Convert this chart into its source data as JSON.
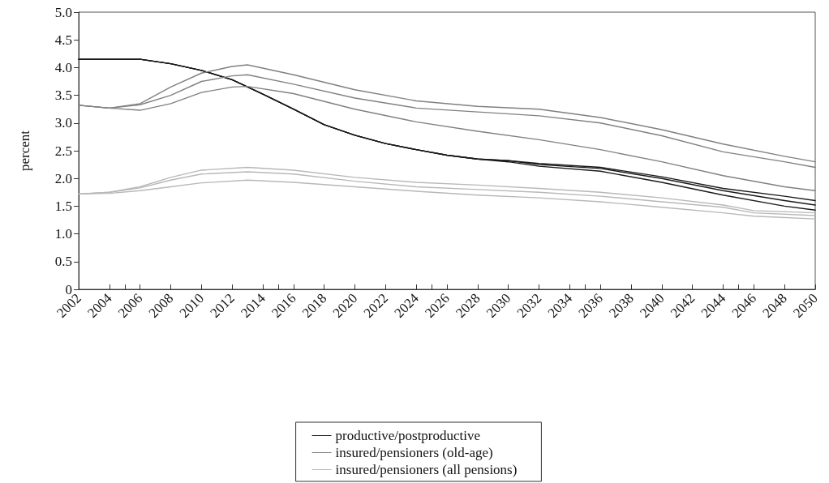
{
  "chart_data": {
    "type": "line",
    "ylabel": "percent",
    "xlim": [
      2002,
      2050
    ],
    "xticks": [
      2002,
      2004,
      2006,
      2008,
      2010,
      2012,
      2014,
      2016,
      2018,
      2020,
      2022,
      2024,
      2026,
      2028,
      2030,
      2032,
      2034,
      2036,
      2038,
      2040,
      2042,
      2044,
      2046,
      2048,
      2050
    ],
    "ylim": [
      0,
      5
    ],
    "yticks": [
      0,
      {
        "value": 0.5,
        "label": "0.5"
      },
      {
        "value": 1,
        "label": "1.0"
      },
      {
        "value": 1.5,
        "label": "1.5"
      },
      {
        "value": 2,
        "label": "2.0"
      },
      {
        "value": 2.5,
        "label": "2.5"
      },
      {
        "value": 3,
        "label": "3.0"
      },
      {
        "value": 3.5,
        "label": "3.5"
      },
      {
        "value": 4,
        "label": "4.0"
      },
      {
        "value": 4.5,
        "label": "4.5"
      },
      {
        "value": 5,
        "label": "5.0"
      }
    ],
    "grid": false,
    "legend": "bottom",
    "marker": "none",
    "line_style": "solid",
    "series": [
      {
        "name": "productive/postproductive",
        "color": "#1a1a1a",
        "x": [
          2002,
          2004,
          2006,
          2008,
          2010,
          2012,
          2014,
          2016,
          2018,
          2020,
          2022,
          2024,
          2026,
          2028,
          2030,
          2032,
          2036,
          2040,
          2044,
          2048,
          2050
        ],
        "values": [
          4.15,
          4.15,
          4.15,
          4.07,
          3.95,
          3.78,
          3.52,
          3.25,
          2.97,
          2.78,
          2.63,
          2.52,
          2.42,
          2.35,
          2.32,
          2.27,
          2.2,
          2.03,
          1.82,
          1.68,
          1.6
        ]
      },
      {
        "color": "#1a1a1a",
        "x": [
          2002,
          2004,
          2006,
          2008,
          2010,
          2012,
          2014,
          2016,
          2018,
          2020,
          2022,
          2024,
          2026,
          2028,
          2030,
          2032,
          2036,
          2040,
          2044,
          2048,
          2050
        ],
        "values": [
          4.15,
          4.15,
          4.15,
          4.07,
          3.95,
          3.78,
          3.52,
          3.25,
          2.97,
          2.78,
          2.63,
          2.52,
          2.42,
          2.35,
          2.32,
          2.25,
          2.18,
          2.0,
          1.78,
          1.6,
          1.52
        ]
      },
      {
        "color": "#1a1a1a",
        "x": [
          2002,
          2004,
          2006,
          2008,
          2010,
          2012,
          2014,
          2016,
          2018,
          2020,
          2022,
          2024,
          2026,
          2028,
          2030,
          2032,
          2036,
          2040,
          2044,
          2048,
          2050
        ],
        "values": [
          4.15,
          4.15,
          4.15,
          4.07,
          3.95,
          3.78,
          3.52,
          3.25,
          2.97,
          2.78,
          2.63,
          2.52,
          2.42,
          2.35,
          2.3,
          2.22,
          2.13,
          1.93,
          1.7,
          1.5,
          1.43
        ]
      },
      {
        "name": "insured/pensioners (old-age)",
        "color": "#808080",
        "x": [
          2002,
          2004,
          2006,
          2008,
          2010,
          2012,
          2013,
          2016,
          2020,
          2024,
          2028,
          2032,
          2036,
          2040,
          2044,
          2048,
          2050
        ],
        "values": [
          3.32,
          3.27,
          3.35,
          3.65,
          3.9,
          4.02,
          4.05,
          3.87,
          3.6,
          3.4,
          3.3,
          3.25,
          3.1,
          2.88,
          2.62,
          2.4,
          2.3
        ]
      },
      {
        "color": "#808080",
        "x": [
          2002,
          2004,
          2006,
          2008,
          2010,
          2012,
          2013,
          2016,
          2020,
          2024,
          2028,
          2032,
          2036,
          2040,
          2044,
          2048,
          2050
        ],
        "values": [
          3.32,
          3.27,
          3.33,
          3.5,
          3.75,
          3.85,
          3.87,
          3.7,
          3.45,
          3.27,
          3.2,
          3.13,
          3.0,
          2.77,
          2.48,
          2.3,
          2.2
        ]
      },
      {
        "color": "#808080",
        "x": [
          2002,
          2004,
          2006,
          2008,
          2010,
          2012,
          2013,
          2016,
          2020,
          2024,
          2028,
          2032,
          2036,
          2040,
          2044,
          2048,
          2050
        ],
        "values": [
          3.32,
          3.27,
          3.23,
          3.35,
          3.55,
          3.65,
          3.66,
          3.53,
          3.25,
          3.02,
          2.85,
          2.7,
          2.52,
          2.3,
          2.05,
          1.85,
          1.78
        ]
      },
      {
        "name": "insured/pensioners (all pensions)",
        "color": "#b8b8b8",
        "x": [
          2002,
          2004,
          2006,
          2008,
          2010,
          2013,
          2016,
          2020,
          2024,
          2028,
          2032,
          2036,
          2040,
          2044,
          2046,
          2050
        ],
        "values": [
          1.72,
          1.75,
          1.85,
          2.02,
          2.15,
          2.2,
          2.15,
          2.02,
          1.93,
          1.88,
          1.82,
          1.75,
          1.65,
          1.52,
          1.42,
          1.38
        ]
      },
      {
        "color": "#b8b8b8",
        "x": [
          2002,
          2004,
          2006,
          2008,
          2010,
          2013,
          2016,
          2020,
          2024,
          2028,
          2032,
          2036,
          2040,
          2044,
          2046,
          2050
        ],
        "values": [
          1.72,
          1.75,
          1.83,
          1.97,
          2.08,
          2.12,
          2.08,
          1.95,
          1.85,
          1.8,
          1.75,
          1.68,
          1.58,
          1.48,
          1.38,
          1.33
        ]
      },
      {
        "color": "#b8b8b8",
        "x": [
          2002,
          2004,
          2006,
          2008,
          2010,
          2013,
          2016,
          2020,
          2024,
          2028,
          2032,
          2036,
          2040,
          2044,
          2046,
          2050
        ],
        "values": [
          1.72,
          1.73,
          1.78,
          1.85,
          1.92,
          1.97,
          1.93,
          1.85,
          1.77,
          1.7,
          1.65,
          1.58,
          1.48,
          1.38,
          1.32,
          1.27
        ]
      }
    ]
  }
}
